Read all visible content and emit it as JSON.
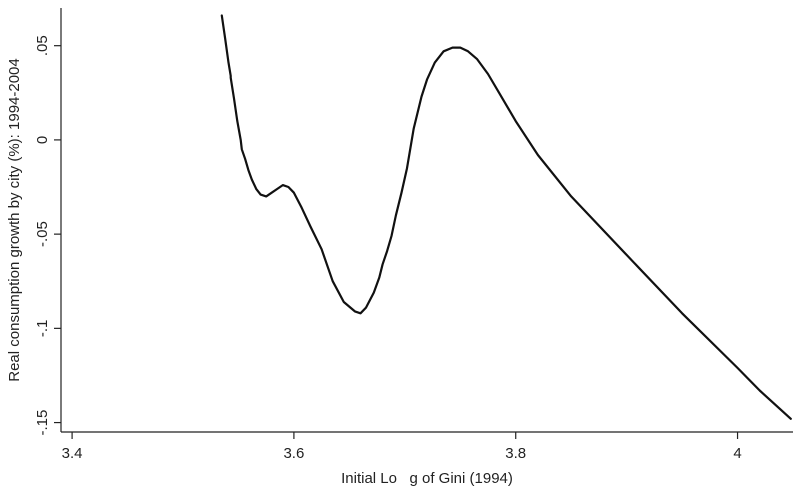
{
  "chart_data": {
    "type": "line",
    "title": "",
    "xlabel": "Initial Lo   g of Gini (1994)",
    "ylabel": "Real consumption growth by city (%): 1994-2004",
    "xlim": [
      3.39,
      4.05
    ],
    "ylim": [
      -0.155,
      0.07
    ],
    "x_ticks": [
      3.4,
      3.6,
      3.8,
      4.0
    ],
    "x_tick_labels": [
      "3.4",
      "3.6",
      "3.8",
      "4"
    ],
    "y_ticks": [
      -0.15,
      -0.1,
      -0.05,
      0,
      0.05
    ],
    "y_tick_labels": [
      "-.15",
      "-.1",
      "-.05",
      "0",
      ".05"
    ],
    "grid": false,
    "legend": "none",
    "series": [
      {
        "color": "#111111",
        "x": [
          3.535,
          3.538,
          3.541,
          3.543,
          3.543,
          3.546,
          3.549,
          3.552,
          3.553,
          3.556,
          3.559,
          3.562,
          3.566,
          3.57,
          3.575,
          3.58,
          3.585,
          3.59,
          3.595,
          3.6,
          3.607,
          3.615,
          3.625,
          3.635,
          3.645,
          3.655,
          3.66,
          3.665,
          3.672,
          3.677,
          3.68,
          3.684,
          3.688,
          3.692,
          3.697,
          3.702,
          3.708,
          3.715,
          3.72,
          3.727,
          3.735,
          3.743,
          3.75,
          3.757,
          3.765,
          3.775,
          3.785,
          3.8,
          3.82,
          3.85,
          3.9,
          3.95,
          4.0,
          4.02,
          4.048
        ],
        "y": [
          0.066,
          0.054,
          0.041,
          0.034,
          0.033,
          0.022,
          0.01,
          0.0,
          -0.005,
          -0.01,
          -0.016,
          -0.021,
          -0.026,
          -0.029,
          -0.03,
          -0.028,
          -0.026,
          -0.024,
          -0.025,
          -0.028,
          -0.036,
          -0.046,
          -0.058,
          -0.075,
          -0.086,
          -0.091,
          -0.092,
          -0.089,
          -0.081,
          -0.073,
          -0.066,
          -0.059,
          -0.051,
          -0.04,
          -0.028,
          -0.015,
          0.006,
          0.023,
          0.032,
          0.041,
          0.047,
          0.049,
          0.049,
          0.047,
          0.043,
          0.035,
          0.025,
          0.01,
          -0.008,
          -0.03,
          -0.061,
          -0.092,
          -0.121,
          -0.133,
          -0.148
        ]
      }
    ]
  }
}
